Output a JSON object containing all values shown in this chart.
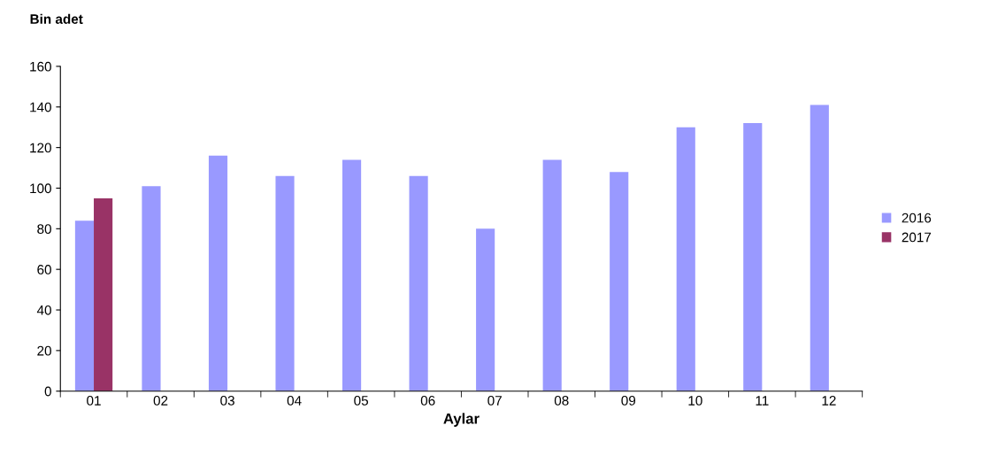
{
  "chart_data": {
    "type": "bar",
    "ylabel": "Bin adet",
    "xlabel": "Aylar",
    "categories": [
      "01",
      "02",
      "03",
      "04",
      "05",
      "06",
      "07",
      "08",
      "09",
      "10",
      "11",
      "12"
    ],
    "series": [
      {
        "name": "2016",
        "color": "#9999ff",
        "values": [
          84,
          101,
          116,
          106,
          114,
          106,
          80,
          114,
          108,
          130,
          132,
          141
        ]
      },
      {
        "name": "2017",
        "color": "#993366",
        "values": [
          95,
          null,
          null,
          null,
          null,
          null,
          null,
          null,
          null,
          null,
          null,
          null
        ]
      }
    ],
    "ylim": [
      0,
      160
    ],
    "yticks": [
      0,
      20,
      40,
      60,
      80,
      100,
      120,
      140,
      160
    ],
    "grid": false,
    "legend": "right"
  }
}
